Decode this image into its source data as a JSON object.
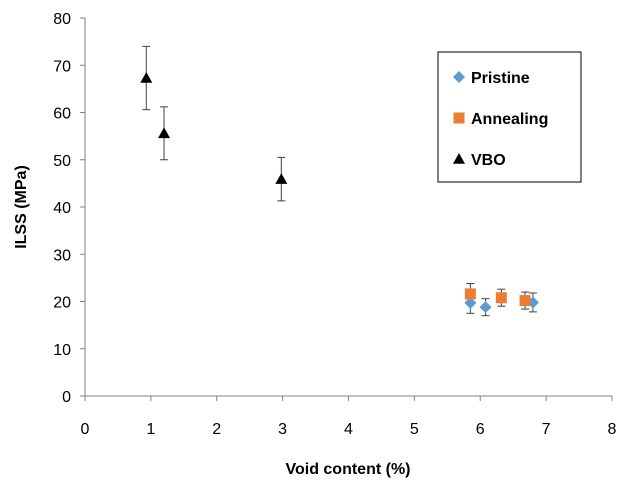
{
  "chart_data": {
    "type": "scatter",
    "title": "",
    "xlabel": "Void content (%)",
    "ylabel": "ILSS (MPa)",
    "xlim": [
      0,
      8
    ],
    "ylim": [
      0,
      80
    ],
    "x_ticks": [
      "0",
      "1",
      "2",
      "3",
      "4",
      "5",
      "6",
      "7",
      "8"
    ],
    "y_ticks": [
      "0",
      "10",
      "20",
      "30",
      "40",
      "50",
      "60",
      "70",
      "80"
    ],
    "grid": false,
    "legend_position": "top-right",
    "series": [
      {
        "name": "Pristine",
        "marker": "diamond",
        "color": "#5B9BD5",
        "points": [
          {
            "x": 5.85,
            "y": 19.7,
            "err": 2.2
          },
          {
            "x": 6.08,
            "y": 18.8,
            "err": 1.8
          },
          {
            "x": 6.8,
            "y": 19.8,
            "err": 2.0
          }
        ]
      },
      {
        "name": "Annealing",
        "marker": "square",
        "color": "#ED7D31",
        "points": [
          {
            "x": 5.85,
            "y": 21.6,
            "err": 2.2
          },
          {
            "x": 6.32,
            "y": 20.8,
            "err": 1.8
          },
          {
            "x": 6.68,
            "y": 20.2,
            "err": 1.8
          }
        ]
      },
      {
        "name": "VBO",
        "marker": "triangle",
        "color": "#000000",
        "points": [
          {
            "x": 0.93,
            "y": 67.3,
            "err": 6.7
          },
          {
            "x": 1.2,
            "y": 55.6,
            "err": 5.6
          },
          {
            "x": 2.98,
            "y": 45.9,
            "err": 4.6
          }
        ]
      }
    ]
  }
}
